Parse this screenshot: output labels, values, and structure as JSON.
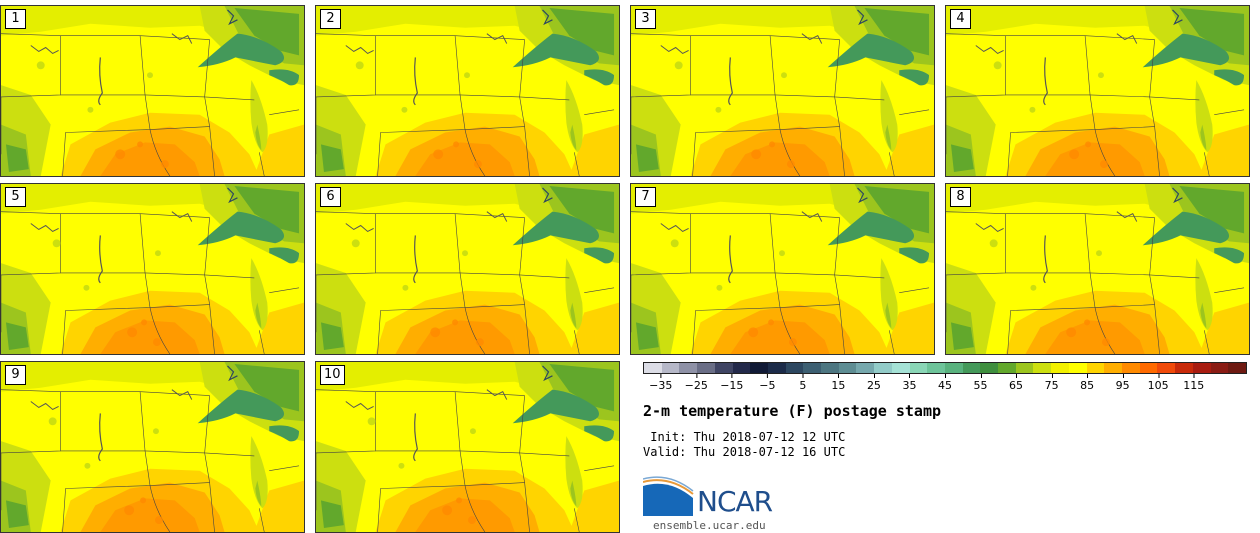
{
  "panels": [
    {
      "label": "1"
    },
    {
      "label": "2"
    },
    {
      "label": "3"
    },
    {
      "label": "4"
    },
    {
      "label": "5"
    },
    {
      "label": "6"
    },
    {
      "label": "7"
    },
    {
      "label": "8"
    },
    {
      "label": "9"
    },
    {
      "label": "10"
    }
  ],
  "colorbar": {
    "colors": [
      "#dcdde6",
      "#b6b8c8",
      "#8e91a6",
      "#6a6e86",
      "#3f4463",
      "#23294a",
      "#111a36",
      "#1c2b49",
      "#2d4760",
      "#3d5f72",
      "#4d7681",
      "#5e8d93",
      "#76a8ad",
      "#92cbc8",
      "#a5e2d6",
      "#8ad6b6",
      "#6ec49a",
      "#59b27e",
      "#44995a",
      "#3f8f3e",
      "#62a82c",
      "#9cc51e",
      "#ccdf10",
      "#f2f000",
      "#ffff00",
      "#ffd400",
      "#ffae00",
      "#ff8a00",
      "#ff6a00",
      "#f04a0a",
      "#c82a0a",
      "#a81c10",
      "#8a1c14",
      "#6e1a12"
    ],
    "tick_labels": [
      "−35",
      "−25",
      "−15",
      "−5",
      "5",
      "15",
      "25",
      "35",
      "45",
      "55",
      "65",
      "75",
      "85",
      "95",
      "105",
      "115"
    ]
  },
  "title": "2-m temperature (F) postage stamp",
  "init_line": " Init: Thu 2018-07-12 12 UTC",
  "valid_line": "Valid: Thu 2018-07-12 16 UTC",
  "logo": {
    "text": "NCAR",
    "color": "#1f4e8c"
  },
  "site": "ensemble.ucar.edu"
}
